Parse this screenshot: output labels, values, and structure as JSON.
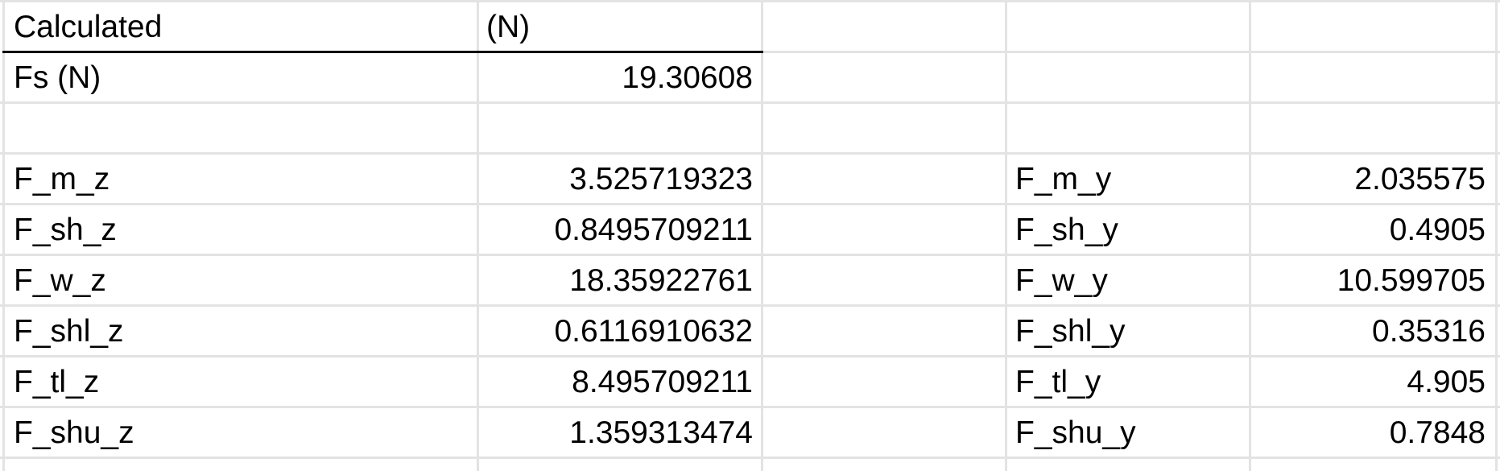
{
  "header": {
    "label": "Calculated",
    "unit": "(N)"
  },
  "fs": {
    "label": "Fs (N)",
    "value": "19.30608"
  },
  "z_rows": [
    {
      "label": "F_m_z",
      "value": "3.525719323"
    },
    {
      "label": "F_sh_z",
      "value": "0.8495709211"
    },
    {
      "label": "F_w_z",
      "value": "18.35922761"
    },
    {
      "label": "F_shl_z",
      "value": "0.6116910632"
    },
    {
      "label": "F_tl_z",
      "value": "8.495709211"
    },
    {
      "label": "F_shu_z",
      "value": "1.359313474"
    }
  ],
  "y_rows": [
    {
      "label": "F_m_y",
      "value": "2.035575"
    },
    {
      "label": "F_sh_y",
      "value": "0.4905"
    },
    {
      "label": "F_w_y",
      "value": "10.599705"
    },
    {
      "label": "F_shl_y",
      "value": "0.35316"
    },
    {
      "label": "F_tl_y",
      "value": "4.905"
    },
    {
      "label": "F_shu_y",
      "value": "0.7848"
    }
  ],
  "colors": {
    "gridline": "#e3e3e3",
    "header_border": "#000000",
    "text": "#000000",
    "background": "#ffffff"
  }
}
